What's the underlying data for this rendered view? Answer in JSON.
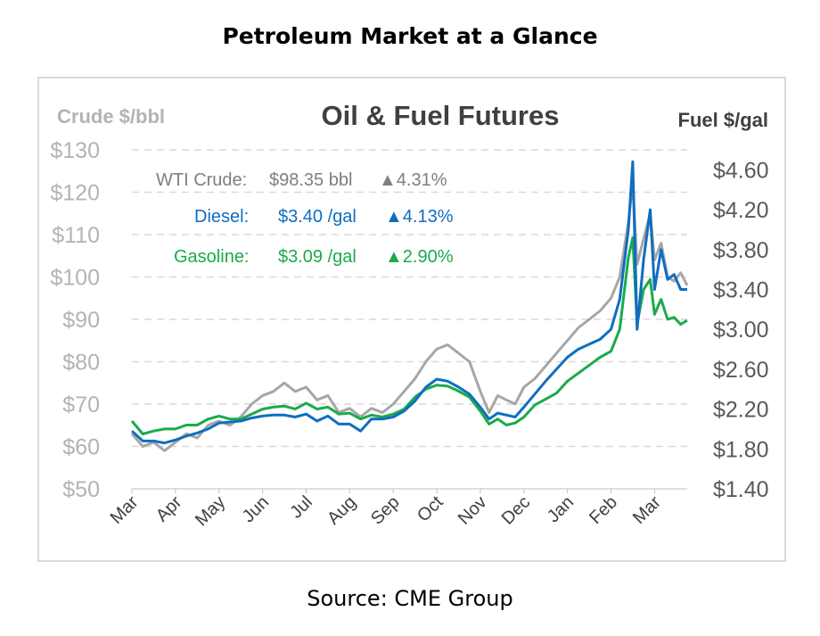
{
  "page_title": "Petroleum Market at a Glance",
  "source": "Source: CME Group",
  "colors": {
    "crude": "#a6a6a6",
    "diesel": "#0f6ebf",
    "gasoline": "#1aab4b",
    "axis_text": "#b3b3b3",
    "title_text": "#404040",
    "grid": "#d9d9d9"
  },
  "chart_data": {
    "type": "line",
    "title": "Oil & Fuel Futures",
    "ylabel_left": "Crude $/bbl",
    "ylabel_right": "Fuel $/gal",
    "ylim_left": [
      50,
      130
    ],
    "ylim_right": [
      1.4,
      4.8
    ],
    "yticks_left": [
      "$50",
      "$60",
      "$70",
      "$80",
      "$90",
      "$100",
      "$110",
      "$120",
      "$130"
    ],
    "yticks_right": [
      "$1.40",
      "$1.80",
      "$2.20",
      "$2.60",
      "$3.00",
      "$3.40",
      "$3.80",
      "$4.20",
      "$4.60"
    ],
    "x_categories": [
      "Mar",
      "Apr",
      "May",
      "Jun",
      "Jul",
      "Aug",
      "Sep",
      "Oct",
      "Nov",
      "Dec",
      "Jan",
      "Feb",
      "Mar"
    ],
    "grid": "horizontal dashed",
    "annotations": {
      "crude": {
        "label": "WTI Crude:",
        "value": "$98.35 bbl",
        "change": "▲4.31%"
      },
      "diesel": {
        "label": "Diesel:",
        "value": "$3.40 /gal",
        "change": "▲4.13%"
      },
      "gasoline": {
        "label": "Gasoline:",
        "value": "$3.09 /gal",
        "change": "▲2.90%"
      }
    },
    "series": [
      {
        "name": "WTI Crude",
        "axis": "left",
        "x": [
          0,
          0.25,
          0.5,
          0.75,
          1,
          1.25,
          1.5,
          1.75,
          2,
          2.25,
          2.5,
          2.75,
          3,
          3.25,
          3.5,
          3.75,
          4,
          4.25,
          4.5,
          4.75,
          5,
          5.25,
          5.5,
          5.75,
          6,
          6.25,
          6.5,
          6.75,
          7,
          7.25,
          7.5,
          7.75,
          8,
          8.2,
          8.4,
          8.6,
          8.8,
          9,
          9.25,
          9.5,
          9.75,
          10,
          10.25,
          10.5,
          10.75,
          11,
          11.2,
          11.4,
          11.5,
          11.6,
          11.75,
          11.9,
          12,
          12.15,
          12.3,
          12.45,
          12.6,
          12.75
        ],
        "values": [
          63,
          60,
          61,
          59,
          61,
          63,
          62,
          65,
          66,
          65,
          67,
          70,
          72,
          73,
          75,
          73,
          74,
          71,
          72,
          68,
          69,
          67,
          69,
          68,
          70,
          73,
          76,
          80,
          83,
          84,
          82,
          80,
          73,
          68,
          72,
          71,
          70,
          74,
          76,
          79,
          82,
          85,
          88,
          90,
          92,
          95,
          100,
          113,
          122,
          103,
          109,
          115,
          104,
          108,
          100,
          99,
          101,
          98
        ]
      },
      {
        "name": "Diesel",
        "axis": "right",
        "x": [
          0,
          0.25,
          0.5,
          0.75,
          1,
          1.25,
          1.5,
          1.75,
          2,
          2.25,
          2.5,
          2.75,
          3,
          3.25,
          3.5,
          3.75,
          4,
          4.25,
          4.5,
          4.75,
          5,
          5.25,
          5.5,
          5.75,
          6,
          6.25,
          6.5,
          6.75,
          7,
          7.25,
          7.5,
          7.75,
          8,
          8.2,
          8.4,
          8.6,
          8.8,
          9,
          9.25,
          9.5,
          9.75,
          10,
          10.25,
          10.5,
          10.75,
          11,
          11.2,
          11.4,
          11.5,
          11.6,
          11.75,
          11.9,
          12,
          12.15,
          12.3,
          12.45,
          12.6,
          12.75
        ],
        "values": [
          1.98,
          1.88,
          1.88,
          1.86,
          1.89,
          1.93,
          1.96,
          2.0,
          2.06,
          2.07,
          2.08,
          2.11,
          2.13,
          2.14,
          2.14,
          2.12,
          2.15,
          2.08,
          2.13,
          2.05,
          2.05,
          1.98,
          2.1,
          2.1,
          2.12,
          2.18,
          2.28,
          2.42,
          2.5,
          2.48,
          2.42,
          2.35,
          2.22,
          2.1,
          2.16,
          2.14,
          2.12,
          2.22,
          2.35,
          2.48,
          2.6,
          2.72,
          2.8,
          2.85,
          2.9,
          3.0,
          3.3,
          4.0,
          4.68,
          3.0,
          3.7,
          4.2,
          3.4,
          3.8,
          3.5,
          3.55,
          3.4,
          3.4
        ]
      },
      {
        "name": "Gasoline",
        "axis": "right",
        "x": [
          0,
          0.25,
          0.5,
          0.75,
          1,
          1.25,
          1.5,
          1.75,
          2,
          2.25,
          2.5,
          2.75,
          3,
          3.25,
          3.5,
          3.75,
          4,
          4.25,
          4.5,
          4.75,
          5,
          5.25,
          5.5,
          5.75,
          6,
          6.25,
          6.5,
          6.75,
          7,
          7.25,
          7.5,
          7.75,
          8,
          8.2,
          8.4,
          8.6,
          8.8,
          9,
          9.25,
          9.5,
          9.75,
          10,
          10.25,
          10.5,
          10.75,
          11,
          11.2,
          11.4,
          11.5,
          11.6,
          11.75,
          11.9,
          12,
          12.15,
          12.3,
          12.45,
          12.6,
          12.75
        ],
        "values": [
          2.08,
          1.95,
          1.98,
          2.0,
          2.0,
          2.04,
          2.04,
          2.1,
          2.13,
          2.1,
          2.1,
          2.15,
          2.2,
          2.22,
          2.23,
          2.2,
          2.26,
          2.2,
          2.22,
          2.15,
          2.16,
          2.1,
          2.14,
          2.12,
          2.15,
          2.2,
          2.32,
          2.4,
          2.44,
          2.43,
          2.38,
          2.32,
          2.18,
          2.05,
          2.1,
          2.04,
          2.06,
          2.12,
          2.24,
          2.3,
          2.36,
          2.48,
          2.56,
          2.64,
          2.72,
          2.78,
          3.0,
          3.72,
          3.92,
          3.05,
          3.4,
          3.5,
          3.15,
          3.3,
          3.1,
          3.12,
          3.05,
          3.09
        ]
      }
    ]
  }
}
